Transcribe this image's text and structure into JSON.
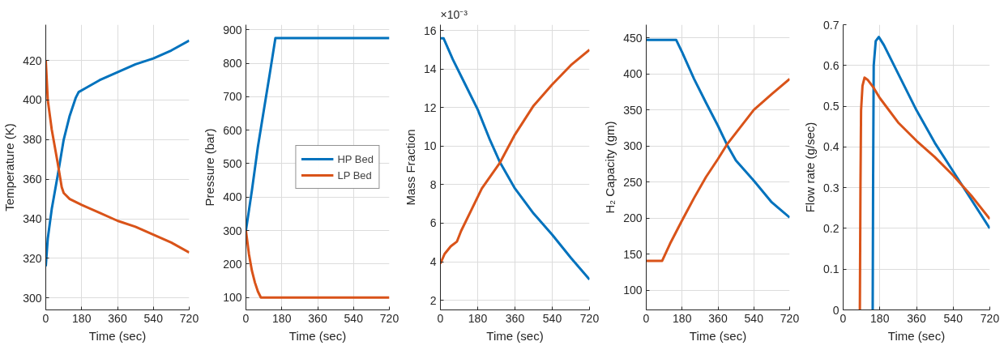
{
  "chart_data": [
    {
      "type": "line",
      "xlabel": "Time (sec)",
      "ylabel": "Temperature (K)",
      "xlim": [
        0,
        720
      ],
      "xticks": [
        0,
        180,
        360,
        540,
        720
      ],
      "ylim": [
        294,
        438
      ],
      "yticks": [
        300,
        320,
        340,
        360,
        380,
        400,
        420
      ],
      "grid": true,
      "legend": false,
      "line_style": "solid",
      "marker": "none",
      "series": [
        {
          "color": "#0072bd",
          "x": [
            0,
            10,
            30,
            60,
            90,
            120,
            150,
            165,
            200,
            270,
            360,
            450,
            540,
            630,
            720
          ],
          "values": [
            316,
            330,
            345,
            362,
            380,
            392,
            401,
            404,
            406,
            410,
            414,
            418,
            421,
            425,
            430
          ]
        },
        {
          "color": "#d95319",
          "x": [
            0,
            10,
            30,
            60,
            80,
            90,
            120,
            180,
            270,
            360,
            450,
            540,
            630,
            720
          ],
          "values": [
            420,
            400,
            385,
            368,
            356,
            353,
            350,
            347,
            343,
            339,
            336,
            332,
            328,
            323
          ]
        }
      ]
    },
    {
      "type": "line",
      "xlabel": "Time (sec)",
      "ylabel": "Pressure (bar)",
      "xlim": [
        0,
        720
      ],
      "xticks": [
        0,
        180,
        360,
        540,
        720
      ],
      "ylim": [
        63,
        915
      ],
      "yticks": [
        100,
        200,
        300,
        400,
        500,
        600,
        700,
        800,
        900
      ],
      "grid": true,
      "legend": "right",
      "line_style": "solid",
      "marker": "none",
      "series": [
        {
          "name": "HP Bed",
          "color": "#0072bd",
          "x": [
            0,
            30,
            60,
            90,
            120,
            148,
            720
          ],
          "values": [
            300,
            420,
            550,
            660,
            770,
            875,
            875
          ]
        },
        {
          "name": "LP Bed",
          "color": "#d95319",
          "x": [
            0,
            15,
            30,
            45,
            60,
            75,
            720
          ],
          "values": [
            300,
            230,
            180,
            145,
            118,
            100,
            100
          ]
        }
      ]
    },
    {
      "type": "line",
      "xlabel": "Time (sec)",
      "ylabel": "Mass Fraction",
      "annotations": [
        "×10⁻³"
      ],
      "xlim": [
        0,
        720
      ],
      "xticks": [
        0,
        180,
        360,
        540,
        720
      ],
      "ylim": [
        1.5,
        16.3
      ],
      "yticks": [
        2,
        4,
        6,
        8,
        10,
        12,
        14,
        16
      ],
      "grid": true,
      "legend": false,
      "line_style": "solid",
      "marker": "none",
      "series": [
        {
          "color": "#0072bd",
          "x": [
            0,
            15,
            60,
            120,
            180,
            240,
            288,
            360,
            450,
            540,
            630,
            720
          ],
          "values": [
            15.6,
            15.6,
            14.5,
            13.2,
            11.9,
            10.3,
            9.15,
            7.8,
            6.5,
            5.4,
            4.2,
            3.08
          ]
        },
        {
          "color": "#d95319",
          "x": [
            0,
            20,
            50,
            80,
            100,
            150,
            200,
            288,
            360,
            450,
            540,
            630,
            720
          ],
          "values": [
            3.9,
            4.4,
            4.8,
            5.05,
            5.6,
            6.7,
            7.8,
            9.15,
            10.6,
            12.1,
            13.2,
            14.2,
            15.0
          ]
        }
      ]
    },
    {
      "type": "line",
      "xlabel": "Time (sec)",
      "ylabel": "H₂ Capacity (gm)",
      "xlim": [
        0,
        720
      ],
      "xticks": [
        0,
        180,
        360,
        540,
        720
      ],
      "ylim": [
        73,
        468
      ],
      "yticks": [
        100,
        150,
        200,
        250,
        300,
        350,
        400,
        450
      ],
      "grid": true,
      "legend": false,
      "line_style": "solid",
      "marker": "none",
      "series": [
        {
          "color": "#0072bd",
          "x": [
            0,
            150,
            180,
            240,
            300,
            360,
            405,
            450,
            540,
            630,
            720
          ],
          "values": [
            447,
            447,
            430,
            393,
            360,
            328,
            302,
            280,
            252,
            222,
            201
          ]
        },
        {
          "color": "#d95319",
          "x": [
            0,
            80,
            120,
            180,
            240,
            300,
            360,
            405,
            450,
            540,
            630,
            720
          ],
          "values": [
            141,
            141,
            165,
            197,
            228,
            257,
            282,
            302,
            318,
            350,
            372,
            393
          ]
        }
      ]
    },
    {
      "type": "line",
      "xlabel": "Time (sec)",
      "ylabel": "Flow rate (g/sec)",
      "xlim": [
        0,
        720
      ],
      "xticks": [
        0,
        180,
        360,
        540,
        720
      ],
      "ylim": [
        0,
        0.7
      ],
      "yticks": [
        0,
        0.1,
        0.2,
        0.3,
        0.4,
        0.5,
        0.6,
        0.7
      ],
      "grid": true,
      "legend": false,
      "line_style": "solid",
      "marker": "none",
      "series": [
        {
          "color": "#0072bd",
          "x": [
            145,
            147,
            150,
            160,
            175,
            200,
            270,
            360,
            450,
            540,
            630,
            720
          ],
          "values": [
            0,
            0.3,
            0.6,
            0.66,
            0.67,
            0.65,
            0.58,
            0.49,
            0.41,
            0.34,
            0.27,
            0.2
          ]
        },
        {
          "color": "#d95319",
          "x": [
            82,
            85,
            88,
            95,
            105,
            120,
            150,
            180,
            270,
            360,
            450,
            540,
            630,
            720
          ],
          "values": [
            0,
            0.3,
            0.49,
            0.55,
            0.57,
            0.565,
            0.545,
            0.52,
            0.46,
            0.415,
            0.375,
            0.33,
            0.28,
            0.223
          ]
        }
      ]
    }
  ]
}
